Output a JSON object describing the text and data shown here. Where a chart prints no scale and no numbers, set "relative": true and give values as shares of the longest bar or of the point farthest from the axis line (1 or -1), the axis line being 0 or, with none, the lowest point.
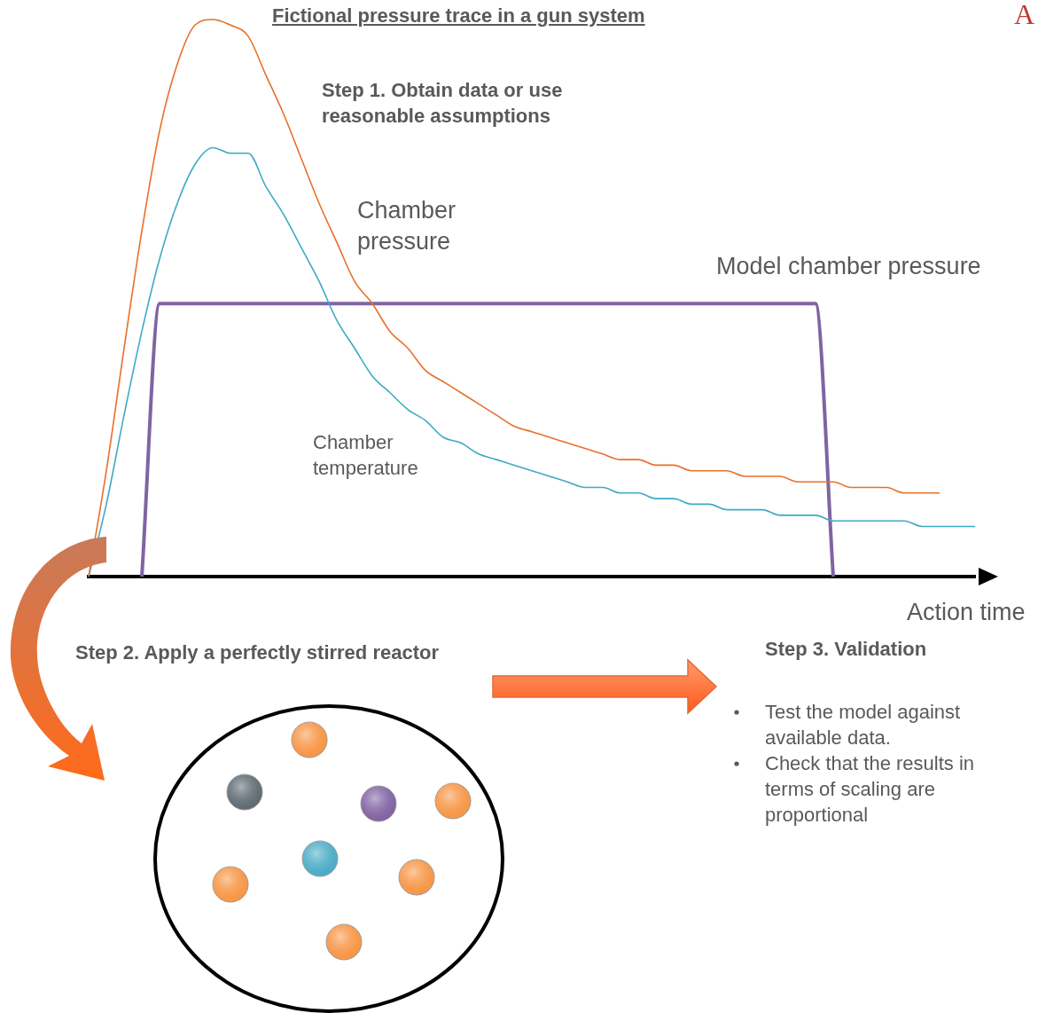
{
  "chart_data": {
    "type": "line",
    "relative": true,
    "title": "Fictional pressure trace in a gun system",
    "xlabel": "Action time",
    "annotations": [
      "A",
      "Step 1. Obtain data or use reasonable assumptions",
      "Step 2. Apply a perfectly stirred reactor",
      "Step 3. Validation",
      "Test the model against available data.",
      "Check that the results in terms of scaling are proportional"
    ],
    "categories": [
      null,
      null,
      null,
      null,
      null,
      null,
      null,
      null,
      null,
      null,
      null,
      null,
      null,
      null,
      null,
      null,
      null,
      null,
      null,
      null,
      null,
      null,
      null,
      null,
      null,
      null,
      null,
      null,
      null,
      null,
      null,
      null,
      null,
      null,
      null,
      null,
      null,
      null,
      null,
      null,
      null,
      null,
      null,
      null,
      null,
      null,
      null,
      null,
      null,
      null,
      null
    ],
    "series": [
      {
        "name": "Chamber pressure",
        "color": "#e8702a",
        "values": [
          0,
          0.19,
          0.41,
          0.62,
          0.8,
          0.92,
          0.99,
          1.0,
          0.99,
          0.97,
          0.9,
          0.83,
          0.75,
          0.67,
          0.6,
          0.53,
          0.49,
          0.44,
          0.41,
          0.37,
          0.35,
          0.33,
          0.31,
          0.29,
          0.27,
          0.26,
          0.25,
          0.24,
          0.23,
          0.22,
          0.21,
          0.21,
          0.2,
          0.2,
          0.19,
          0.19,
          0.19,
          0.18,
          0.18,
          0.18,
          0.17,
          0.17,
          0.17,
          0.16,
          0.16,
          0.16,
          0.15,
          0.15,
          0.15,
          null,
          null
        ]
      },
      {
        "name": "Chamber temperature",
        "color": "#3fa9c4",
        "values": [
          0,
          0.13,
          0.29,
          0.44,
          0.57,
          0.67,
          0.74,
          0.77,
          0.76,
          0.76,
          0.7,
          0.65,
          0.59,
          0.53,
          0.46,
          0.41,
          0.36,
          0.33,
          0.3,
          0.28,
          0.25,
          0.24,
          0.22,
          0.21,
          0.2,
          0.19,
          0.18,
          0.17,
          0.16,
          0.16,
          0.15,
          0.15,
          0.14,
          0.14,
          0.13,
          0.13,
          0.12,
          0.12,
          0.12,
          0.11,
          0.11,
          0.11,
          0.1,
          0.1,
          0.1,
          0.1,
          0.1,
          0.09,
          0.09,
          0.09,
          0.09
        ]
      },
      {
        "name": "Model chamber pressure",
        "color": "#8064a2",
        "values": [
          null,
          null,
          null,
          0,
          0.49,
          0.49,
          0.49,
          0.49,
          0.49,
          0.49,
          0.49,
          0.49,
          0.49,
          0.49,
          0.49,
          0.49,
          0.49,
          0.49,
          0.49,
          0.49,
          0.49,
          0.49,
          0.49,
          0.49,
          0.49,
          0.49,
          0.49,
          0.49,
          0.49,
          0.49,
          0.49,
          0.49,
          0.49,
          0.49,
          0.49,
          0.49,
          0.49,
          0.49,
          0.49,
          0.49,
          0.49,
          0.49,
          0,
          null,
          null,
          null,
          null,
          null,
          null,
          null,
          null
        ]
      }
    ]
  }
}
